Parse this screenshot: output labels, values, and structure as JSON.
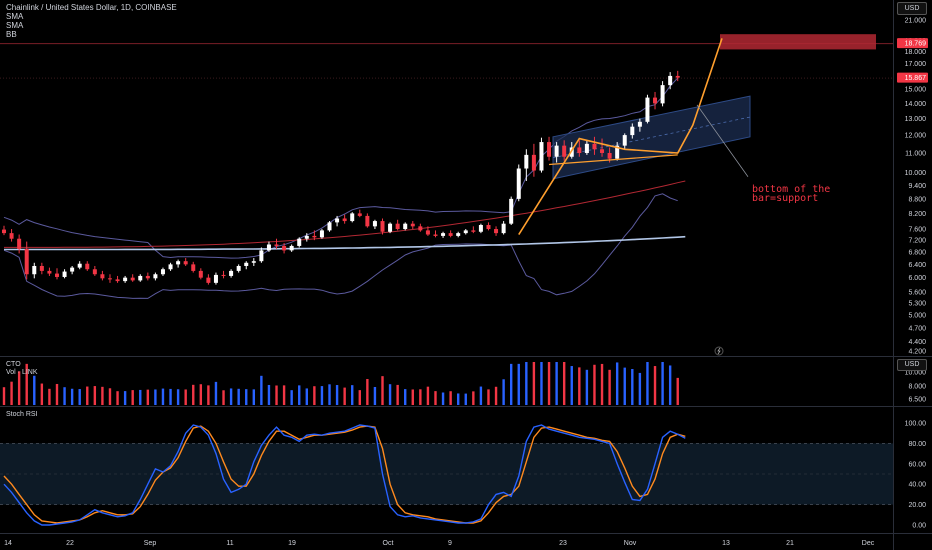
{
  "header": {
    "symbol": "Chainlink / United States Dollar, 1D, COINBASE",
    "indicators": [
      "SMA",
      "SMA",
      "BB"
    ]
  },
  "currency_label": "USD",
  "annotation": {
    "line1": "bottom of the",
    "line2": "bar=support"
  },
  "colors": {
    "background": "#000000",
    "up_candle": "#ffffff",
    "down_candle": "#f23645",
    "bb_band": "#5b5a9e",
    "sma_slow": "#b2c7e8",
    "sma_fast": "#b22833",
    "channel_fill": "#1c2e52",
    "trend_line": "#ff9f2e",
    "annotation": "#f23645",
    "vol_up": "#2962ff",
    "vol_down": "#f23645",
    "stoch_k": "#2962ff",
    "stoch_d": "#ff8a1e",
    "stoch_band": "#0d1a26"
  },
  "chart_data": [
    {
      "id": "price",
      "type": "candlestick",
      "ylabel": "USD",
      "y_ticks": [
        "21.000",
        "19.000",
        "18.000",
        "17.000",
        "15.000",
        "14.000",
        "13.000",
        "12.000",
        "11.000",
        "10.000",
        "9.400",
        "8.800",
        "8.200",
        "7.600",
        "7.200",
        "6.800",
        "6.400",
        "6.000",
        "5.600",
        "5.300",
        "5.000",
        "4.700",
        "4.400",
        "4.200"
      ],
      "price_labels": [
        {
          "text": "18.769",
          "value": 18.769,
          "color": "#f23645"
        },
        {
          "text": "15.867",
          "value": 15.867,
          "color": "#f23645"
        }
      ],
      "x_ticks": [
        "14",
        "22",
        "Sep",
        "11",
        "19",
        "Oct",
        "9",
        "23",
        "Nov",
        "13",
        "21",
        "Dec"
      ],
      "candles": [
        {
          "o": 7.58,
          "h": 7.72,
          "l": 7.38,
          "c": 7.45
        },
        {
          "o": 7.45,
          "h": 7.6,
          "l": 7.15,
          "c": 7.25
        },
        {
          "o": 7.25,
          "h": 7.4,
          "l": 6.75,
          "c": 6.9
        },
        {
          "o": 6.9,
          "h": 7.15,
          "l": 5.95,
          "c": 6.1
        },
        {
          "o": 6.1,
          "h": 6.45,
          "l": 5.98,
          "c": 6.35
        },
        {
          "o": 6.35,
          "h": 6.45,
          "l": 6.1,
          "c": 6.2
        },
        {
          "o": 6.2,
          "h": 6.3,
          "l": 6.05,
          "c": 6.12
        },
        {
          "o": 6.12,
          "h": 6.28,
          "l": 5.95,
          "c": 6.02
        },
        {
          "o": 6.02,
          "h": 6.25,
          "l": 5.98,
          "c": 6.18
        },
        {
          "o": 6.18,
          "h": 6.35,
          "l": 6.1,
          "c": 6.3
        },
        {
          "o": 6.3,
          "h": 6.5,
          "l": 6.25,
          "c": 6.42
        },
        {
          "o": 6.42,
          "h": 6.5,
          "l": 6.2,
          "c": 6.25
        },
        {
          "o": 6.25,
          "h": 6.35,
          "l": 6.05,
          "c": 6.1
        },
        {
          "o": 6.1,
          "h": 6.2,
          "l": 5.92,
          "c": 5.98
        },
        {
          "o": 5.98,
          "h": 6.1,
          "l": 5.85,
          "c": 5.95
        },
        {
          "o": 5.95,
          "h": 6.05,
          "l": 5.85,
          "c": 5.9
        },
        {
          "o": 5.9,
          "h": 6.05,
          "l": 5.85,
          "c": 6.0
        },
        {
          "o": 6.0,
          "h": 6.1,
          "l": 5.88,
          "c": 5.92
        },
        {
          "o": 5.92,
          "h": 6.1,
          "l": 5.88,
          "c": 6.05
        },
        {
          "o": 6.05,
          "h": 6.15,
          "l": 5.92,
          "c": 5.98
        },
        {
          "o": 5.98,
          "h": 6.15,
          "l": 5.92,
          "c": 6.1
        },
        {
          "o": 6.1,
          "h": 6.3,
          "l": 6.05,
          "c": 6.25
        },
        {
          "o": 6.25,
          "h": 6.45,
          "l": 6.2,
          "c": 6.4
        },
        {
          "o": 6.4,
          "h": 6.55,
          "l": 6.3,
          "c": 6.5
        },
        {
          "o": 6.5,
          "h": 6.6,
          "l": 6.35,
          "c": 6.4
        },
        {
          "o": 6.4,
          "h": 6.48,
          "l": 6.15,
          "c": 6.2
        },
        {
          "o": 6.2,
          "h": 6.28,
          "l": 5.95,
          "c": 6.0
        },
        {
          "o": 6.0,
          "h": 6.1,
          "l": 5.8,
          "c": 5.85
        },
        {
          "o": 5.85,
          "h": 6.15,
          "l": 5.8,
          "c": 6.08
        },
        {
          "o": 6.08,
          "h": 6.2,
          "l": 5.98,
          "c": 6.05
        },
        {
          "o": 6.05,
          "h": 6.25,
          "l": 6.0,
          "c": 6.2
        },
        {
          "o": 6.2,
          "h": 6.4,
          "l": 6.15,
          "c": 6.35
        },
        {
          "o": 6.35,
          "h": 6.5,
          "l": 6.25,
          "c": 6.45
        },
        {
          "o": 6.45,
          "h": 6.6,
          "l": 6.35,
          "c": 6.5
        },
        {
          "o": 6.5,
          "h": 6.95,
          "l": 6.45,
          "c": 6.85
        },
        {
          "o": 6.85,
          "h": 7.15,
          "l": 6.8,
          "c": 7.05
        },
        {
          "o": 7.05,
          "h": 7.25,
          "l": 6.9,
          "c": 7.0
        },
        {
          "o": 7.0,
          "h": 7.1,
          "l": 6.75,
          "c": 6.85
        },
        {
          "o": 6.85,
          "h": 7.05,
          "l": 6.8,
          "c": 7.0
        },
        {
          "o": 7.0,
          "h": 7.3,
          "l": 6.95,
          "c": 7.25
        },
        {
          "o": 7.25,
          "h": 7.45,
          "l": 7.15,
          "c": 7.35
        },
        {
          "o": 7.35,
          "h": 7.55,
          "l": 7.2,
          "c": 7.3
        },
        {
          "o": 7.3,
          "h": 7.6,
          "l": 7.25,
          "c": 7.55
        },
        {
          "o": 7.55,
          "h": 7.9,
          "l": 7.5,
          "c": 7.85
        },
        {
          "o": 7.85,
          "h": 8.1,
          "l": 7.7,
          "c": 8.0
        },
        {
          "o": 8.0,
          "h": 8.15,
          "l": 7.8,
          "c": 7.9
        },
        {
          "o": 7.9,
          "h": 8.25,
          "l": 7.85,
          "c": 8.2
        },
        {
          "o": 8.2,
          "h": 8.35,
          "l": 8.05,
          "c": 8.1
        },
        {
          "o": 8.1,
          "h": 8.2,
          "l": 7.65,
          "c": 7.7
        },
        {
          "o": 7.7,
          "h": 7.95,
          "l": 7.6,
          "c": 7.9
        },
        {
          "o": 7.9,
          "h": 8.0,
          "l": 7.4,
          "c": 7.5
        },
        {
          "o": 7.5,
          "h": 7.85,
          "l": 7.45,
          "c": 7.8
        },
        {
          "o": 7.8,
          "h": 7.95,
          "l": 7.55,
          "c": 7.6
        },
        {
          "o": 7.6,
          "h": 7.85,
          "l": 7.55,
          "c": 7.8
        },
        {
          "o": 7.8,
          "h": 7.9,
          "l": 7.6,
          "c": 7.7
        },
        {
          "o": 7.7,
          "h": 7.8,
          "l": 7.5,
          "c": 7.55
        },
        {
          "o": 7.55,
          "h": 7.7,
          "l": 7.35,
          "c": 7.4
        },
        {
          "o": 7.4,
          "h": 7.55,
          "l": 7.3,
          "c": 7.35
        },
        {
          "o": 7.35,
          "h": 7.5,
          "l": 7.28,
          "c": 7.45
        },
        {
          "o": 7.45,
          "h": 7.55,
          "l": 7.3,
          "c": 7.35
        },
        {
          "o": 7.35,
          "h": 7.5,
          "l": 7.3,
          "c": 7.45
        },
        {
          "o": 7.45,
          "h": 7.6,
          "l": 7.4,
          "c": 7.55
        },
        {
          "o": 7.55,
          "h": 7.7,
          "l": 7.45,
          "c": 7.5
        },
        {
          "o": 7.5,
          "h": 7.8,
          "l": 7.45,
          "c": 7.75
        },
        {
          "o": 7.75,
          "h": 7.85,
          "l": 7.55,
          "c": 7.6
        },
        {
          "o": 7.6,
          "h": 7.7,
          "l": 7.35,
          "c": 7.45
        },
        {
          "o": 7.45,
          "h": 7.9,
          "l": 7.4,
          "c": 7.8
        },
        {
          "o": 7.8,
          "h": 8.9,
          "l": 7.75,
          "c": 8.8
        },
        {
          "o": 8.8,
          "h": 10.4,
          "l": 8.7,
          "c": 10.2
        },
        {
          "o": 10.2,
          "h": 11.2,
          "l": 9.6,
          "c": 10.9
        },
        {
          "o": 10.9,
          "h": 11.5,
          "l": 9.8,
          "c": 10.1
        },
        {
          "o": 10.1,
          "h": 11.85,
          "l": 10.0,
          "c": 11.6
        },
        {
          "o": 11.6,
          "h": 11.9,
          "l": 10.6,
          "c": 10.8
        },
        {
          "o": 10.8,
          "h": 11.6,
          "l": 10.5,
          "c": 11.4
        },
        {
          "o": 11.4,
          "h": 11.7,
          "l": 10.6,
          "c": 10.8
        },
        {
          "o": 10.8,
          "h": 11.6,
          "l": 10.7,
          "c": 11.3
        },
        {
          "o": 11.3,
          "h": 11.7,
          "l": 10.8,
          "c": 11.0
        },
        {
          "o": 11.0,
          "h": 11.7,
          "l": 10.9,
          "c": 11.5
        },
        {
          "o": 11.5,
          "h": 11.9,
          "l": 10.9,
          "c": 11.2
        },
        {
          "o": 11.2,
          "h": 11.8,
          "l": 10.8,
          "c": 11.0
        },
        {
          "o": 11.0,
          "h": 11.3,
          "l": 10.5,
          "c": 10.7
        },
        {
          "o": 10.7,
          "h": 11.6,
          "l": 10.6,
          "c": 11.4
        },
        {
          "o": 11.4,
          "h": 12.1,
          "l": 11.2,
          "c": 12.0
        },
        {
          "o": 12.0,
          "h": 12.7,
          "l": 11.8,
          "c": 12.5
        },
        {
          "o": 12.5,
          "h": 13.0,
          "l": 12.2,
          "c": 12.8
        },
        {
          "o": 12.8,
          "h": 14.6,
          "l": 12.7,
          "c": 14.4
        },
        {
          "o": 14.4,
          "h": 14.8,
          "l": 13.6,
          "c": 14.0
        },
        {
          "o": 14.0,
          "h": 15.6,
          "l": 13.8,
          "c": 15.3
        },
        {
          "o": 15.3,
          "h": 16.3,
          "l": 15.0,
          "c": 16.0
        },
        {
          "o": 16.0,
          "h": 16.4,
          "l": 15.6,
          "c": 15.867
        }
      ],
      "sma_fast": [
        [
          0,
          6.95
        ],
        [
          90,
          9.6
        ]
      ],
      "sma_slow": [
        [
          0,
          6.88
        ],
        [
          90,
          7.32
        ]
      ],
      "annotations": [
        "rising channel",
        "horizontal resistance zone at 18.769",
        "orange trend path",
        "arrow to annotation text"
      ]
    },
    {
      "id": "volume",
      "type": "bar",
      "title_lines": [
        "CTO",
        "Vol · LINK"
      ],
      "y_ticks": [
        "10.000",
        "8.000",
        "6.500"
      ]
    },
    {
      "id": "stoch_rsi",
      "type": "line",
      "title": "Stoch RSI",
      "y_ticks": [
        "100.00",
        "80.00",
        "60.00",
        "40.00",
        "20.00",
        "0.00"
      ],
      "ylim": [
        0,
        100
      ],
      "k": [
        40,
        32,
        22,
        12,
        4,
        0,
        0,
        1,
        2,
        3,
        5,
        10,
        15,
        12,
        10,
        8,
        9,
        12,
        25,
        40,
        55,
        52,
        58,
        72,
        90,
        98,
        96,
        88,
        70,
        45,
        32,
        35,
        40,
        62,
        78,
        88,
        96,
        88,
        86,
        82,
        88,
        89,
        88,
        90,
        91,
        92,
        95,
        98,
        97,
        95,
        50,
        18,
        10,
        8,
        9,
        7,
        6,
        5,
        4,
        3,
        2,
        2,
        3,
        6,
        20,
        30,
        32,
        28,
        48,
        82,
        96,
        98,
        94,
        92,
        90,
        88,
        86,
        85,
        84,
        82,
        80,
        60,
        42,
        25,
        24,
        35,
        60,
        86,
        92,
        89,
        85
      ],
      "d": [
        48,
        40,
        30,
        20,
        10,
        4,
        3,
        2,
        3,
        4,
        5,
        8,
        12,
        14,
        12,
        10,
        10,
        11,
        18,
        30,
        44,
        52,
        56,
        66,
        82,
        95,
        97,
        92,
        80,
        62,
        45,
        38,
        38,
        50,
        68,
        82,
        92,
        92,
        88,
        84,
        86,
        88,
        88,
        89,
        90,
        91,
        93,
        96,
        97,
        96,
        75,
        40,
        20,
        12,
        10,
        9,
        8,
        6,
        5,
        4,
        3,
        2,
        2,
        4,
        12,
        22,
        28,
        30,
        38,
        62,
        86,
        95,
        96,
        94,
        92,
        90,
        88,
        86,
        85,
        83,
        82,
        72,
        56,
        38,
        28,
        30,
        45,
        70,
        86,
        89,
        87
      ]
    }
  ]
}
